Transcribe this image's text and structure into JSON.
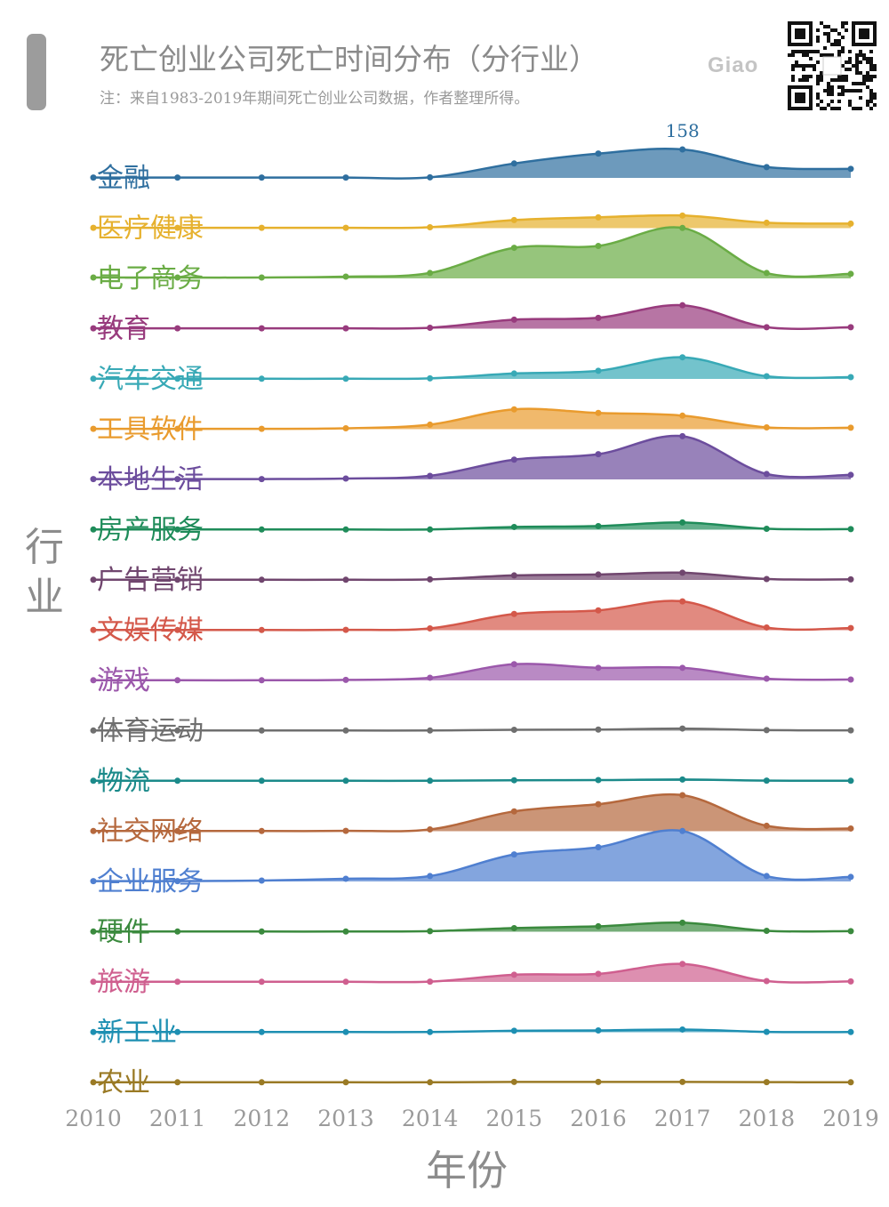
{
  "header": {
    "title": "死亡创业公司死亡时间分布（分行业）",
    "subtitle": "注：来自1983-2019年期间死亡创业公司数据，作者整理所得。",
    "brand": "Giao",
    "qr_icon": "qr-code-icon"
  },
  "chart_data": {
    "type": "ridgeline",
    "title": "死亡创业公司死亡时间分布（分行业）",
    "xlabel": "年份",
    "ylabel": "行业",
    "x": [
      2010,
      2011,
      2012,
      2013,
      2014,
      2015,
      2016,
      2017,
      2018,
      2019
    ],
    "x_tick_labels": [
      "2010",
      "2011",
      "2012",
      "2013",
      "2014",
      "2015",
      "2016",
      "2017",
      "2018",
      "2019"
    ],
    "peak_annotation": {
      "series": "金融",
      "x": 2017,
      "label": "158"
    },
    "series": [
      {
        "name": "金融",
        "color": "#2f6f9f",
        "values": [
          2,
          2,
          2,
          2,
          3,
          80,
          135,
          158,
          60,
          50
        ]
      },
      {
        "name": "医疗健康",
        "color": "#e6b12e",
        "values": [
          2,
          2,
          2,
          2,
          5,
          45,
          60,
          70,
          30,
          25
        ]
      },
      {
        "name": "电子商务",
        "color": "#6aac45",
        "values": [
          5,
          5,
          5,
          10,
          30,
          170,
          180,
          280,
          30,
          25
        ]
      },
      {
        "name": "教育",
        "color": "#983b7d",
        "values": [
          2,
          2,
          2,
          2,
          5,
          50,
          60,
          130,
          8,
          8
        ]
      },
      {
        "name": "汽车交通",
        "color": "#38a9b6",
        "values": [
          1,
          1,
          1,
          1,
          3,
          30,
          45,
          120,
          15,
          10
        ]
      },
      {
        "name": "工具软件",
        "color": "#e99b2e",
        "values": [
          2,
          2,
          2,
          5,
          25,
          110,
          90,
          75,
          10,
          8
        ]
      },
      {
        "name": "本地生活",
        "color": "#6c4d9d",
        "values": [
          2,
          2,
          2,
          5,
          20,
          110,
          140,
          240,
          30,
          25
        ]
      },
      {
        "name": "房产服务",
        "color": "#1f8c5a",
        "values": [
          1,
          1,
          1,
          1,
          1,
          15,
          20,
          40,
          5,
          3
        ]
      },
      {
        "name": "广告营销",
        "color": "#70466e",
        "values": [
          1,
          1,
          1,
          1,
          3,
          25,
          30,
          40,
          5,
          3
        ]
      },
      {
        "name": "文娱传媒",
        "color": "#d4584a",
        "values": [
          1,
          1,
          1,
          2,
          10,
          90,
          110,
          160,
          15,
          12
        ]
      },
      {
        "name": "游戏",
        "color": "#9b58ab",
        "values": [
          1,
          1,
          1,
          3,
          15,
          90,
          70,
          70,
          10,
          5
        ]
      },
      {
        "name": "体育运动",
        "color": "#6f6f6f",
        "values": [
          1,
          1,
          1,
          1,
          1,
          5,
          6,
          12,
          3,
          2
        ]
      },
      {
        "name": "物流",
        "color": "#1b8a8a",
        "values": [
          1,
          1,
          1,
          1,
          1,
          4,
          5,
          8,
          2,
          1
        ]
      },
      {
        "name": "社交网络",
        "color": "#b5683d",
        "values": [
          1,
          1,
          1,
          2,
          10,
          110,
          150,
          200,
          30,
          15
        ]
      },
      {
        "name": "企业服务",
        "color": "#4f7fd0",
        "values": [
          2,
          2,
          5,
          15,
          30,
          150,
          190,
          280,
          30,
          25
        ]
      },
      {
        "name": "硬件",
        "color": "#3b8a3e",
        "values": [
          1,
          1,
          1,
          1,
          3,
          20,
          30,
          50,
          5,
          3
        ]
      },
      {
        "name": "旅游",
        "color": "#cf5f8f",
        "values": [
          1,
          1,
          1,
          1,
          2,
          40,
          45,
          100,
          5,
          3
        ]
      },
      {
        "name": "新工业",
        "color": "#1d8fb2",
        "values": [
          1,
          1,
          1,
          1,
          1,
          8,
          10,
          15,
          2,
          1
        ]
      },
      {
        "name": "农业",
        "color": "#9a7a25",
        "values": [
          1,
          1,
          1,
          1,
          1,
          3,
          3,
          3,
          2,
          1
        ]
      }
    ]
  }
}
